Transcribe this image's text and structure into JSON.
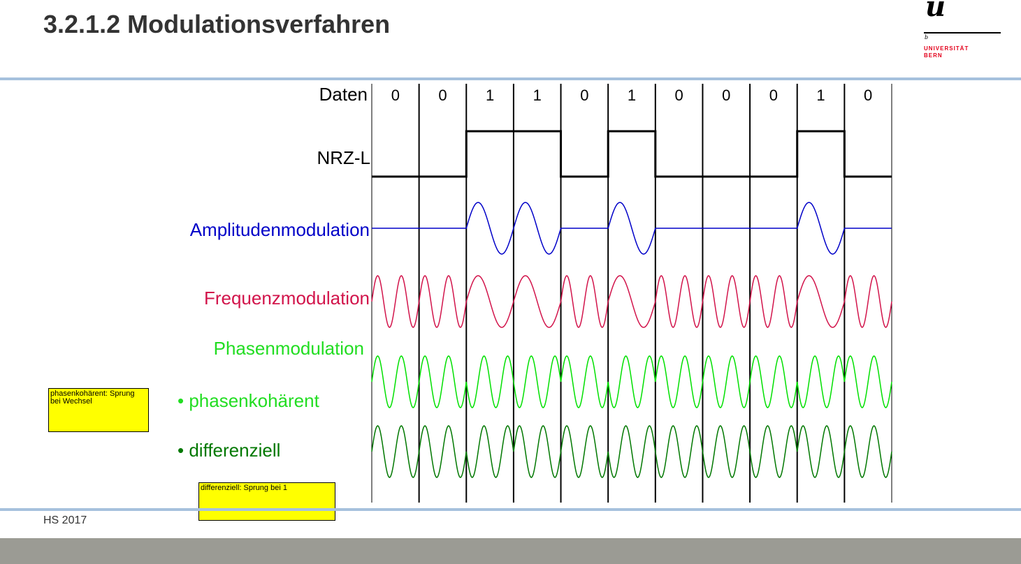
{
  "title": "3.2.1.2 Modulationsverfahren",
  "logo": {
    "mark": "u",
    "superscript": "b",
    "line1": "UNIVERSITÄT",
    "line2": "BERN"
  },
  "footer": {
    "text": "HS 2017"
  },
  "colors": {
    "accent_rule": "#a6c1dd",
    "footer_bar": "#9b9b94",
    "nrz": "#000000",
    "amplitude": "#0000c8",
    "frequency": "#d2144b",
    "phase_coherent": "#00e000",
    "phase_differential": "#007800",
    "note": "#ffff00",
    "logo_red": "#e3001b"
  },
  "diagram": {
    "data_label": "Daten",
    "bits": [
      "0",
      "0",
      "1",
      "1",
      "0",
      "1",
      "0",
      "0",
      "0",
      "1",
      "0"
    ],
    "rows": {
      "nrz": "NRZ-L",
      "amplitude": "Amplitudenmodulation",
      "frequency": "Frequenzmodulation",
      "phase": "Phasenmodulation",
      "phase_coherent": "• phasenkohärent",
      "phase_differential": "• differenziell"
    },
    "notes": {
      "coherent": "phasenkohärent: Sprung bei Wechsel",
      "differential": "differenziell: Sprung bei 1"
    }
  }
}
